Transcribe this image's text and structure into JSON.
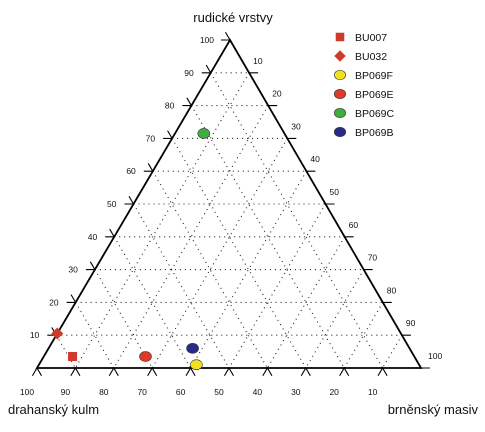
{
  "chart_data": {
    "type": "ternary-scatter",
    "vertices": {
      "top": "rudické vrstvy",
      "left": "drahanský kulm",
      "right": "brněnský masiv"
    },
    "axes": {
      "top": {
        "ticks": [
          10,
          20,
          30,
          40,
          50,
          60,
          70,
          80,
          90,
          100
        ]
      },
      "right": {
        "ticks": [
          10,
          20,
          30,
          40,
          50,
          60,
          70,
          80,
          90,
          100
        ]
      },
      "bottom": {
        "ticks": [
          100,
          90,
          80,
          70,
          60,
          50,
          40,
          30,
          20,
          10
        ]
      }
    },
    "grid": true,
    "legend_position": "top-right",
    "series": [
      {
        "name": "BU007",
        "marker": "square",
        "color": "#d03a2a",
        "points": [
          {
            "top": 3.5,
            "left": 89,
            "right": 7.5
          }
        ]
      },
      {
        "name": "BU032",
        "marker": "diamond",
        "color": "#d03a2a",
        "points": [
          {
            "top": 10.5,
            "left": 89.5,
            "right": 0
          }
        ]
      },
      {
        "name": "BP069F",
        "marker": "circle",
        "color": "#f2e21e",
        "points": [
          {
            "top": 1,
            "left": 58,
            "right": 41
          }
        ]
      },
      {
        "name": "BP069E",
        "marker": "circle",
        "color": "#dd3a2a",
        "points": [
          {
            "top": 3.5,
            "left": 70,
            "right": 26.5
          }
        ]
      },
      {
        "name": "BP069C",
        "marker": "circle",
        "color": "#3fae3a",
        "points": [
          {
            "top": 71.5,
            "left": 21,
            "right": 7.5
          }
        ]
      },
      {
        "name": "BP069B",
        "marker": "circle",
        "color": "#2a2a8c",
        "points": [
          {
            "top": 6,
            "left": 56.5,
            "right": 37.5
          }
        ]
      }
    ]
  }
}
